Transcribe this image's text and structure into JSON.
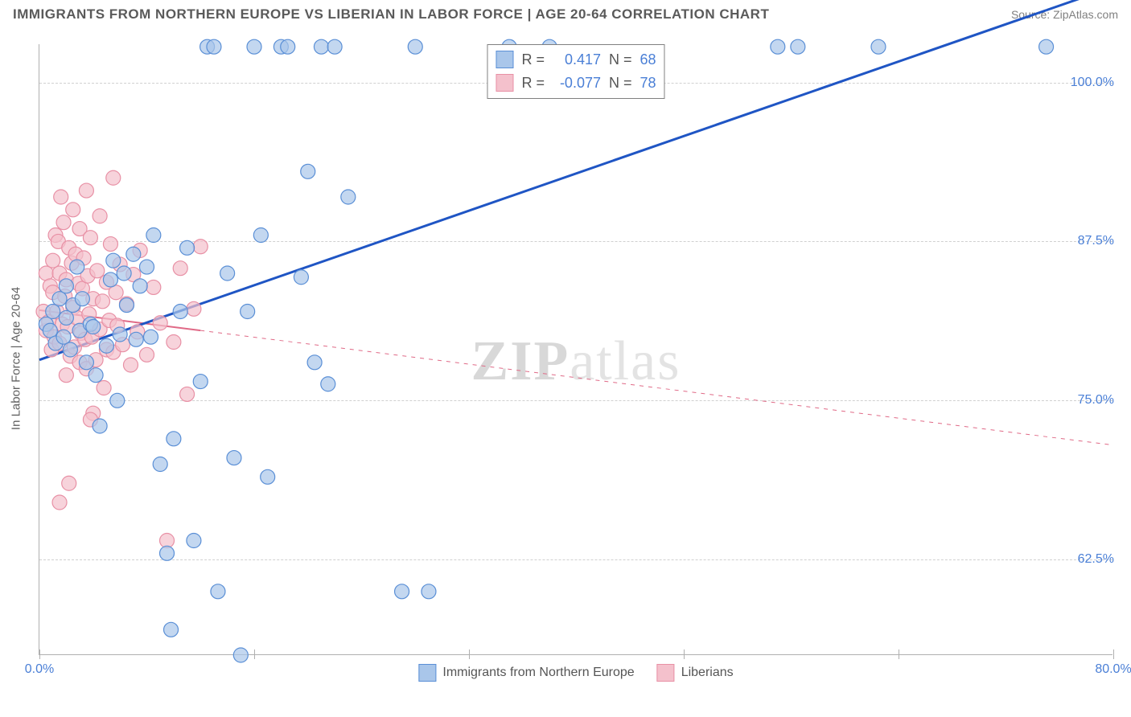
{
  "header": {
    "title": "IMMIGRANTS FROM NORTHERN EUROPE VS LIBERIAN IN LABOR FORCE | AGE 20-64 CORRELATION CHART",
    "source_prefix": "Source: ",
    "source_name": "ZipAtlas.com"
  },
  "chart": {
    "type": "scatter",
    "xlim": [
      0,
      80
    ],
    "ylim": [
      55,
      103
    ],
    "ylabel": "In Labor Force | Age 20-64",
    "x_ticks": [
      0,
      16,
      32,
      48,
      64,
      80
    ],
    "x_tick_labels": [
      "0.0%",
      "",
      "",
      "",
      "",
      "80.0%"
    ],
    "y_ticks": [
      62.5,
      75.0,
      87.5,
      100.0
    ],
    "y_tick_labels": [
      "62.5%",
      "75.0%",
      "87.5%",
      "100.0%"
    ],
    "grid_color": "#d0d0d0",
    "background_color": "#ffffff",
    "watermark_zip": "ZIP",
    "watermark_atlas": "atlas",
    "series": [
      {
        "key": "northern_europe",
        "label": "Immigrants from Northern Europe",
        "R": "0.417",
        "N": "68",
        "marker_fill": "#a9c6ea",
        "marker_stroke": "#5a8fd6",
        "marker_opacity": 0.7,
        "marker_radius": 9,
        "line_color": "#1f55c4",
        "line_width": 3,
        "line_dash": "none",
        "trend_start": [
          0,
          78.2
        ],
        "trend_end": [
          80,
          107.5
        ],
        "points": [
          [
            0.5,
            81
          ],
          [
            0.8,
            80.5
          ],
          [
            1,
            82
          ],
          [
            1.2,
            79.5
          ],
          [
            1.5,
            83
          ],
          [
            1.8,
            80
          ],
          [
            2,
            81.5
          ],
          [
            2,
            84
          ],
          [
            2.3,
            79
          ],
          [
            2.5,
            82.5
          ],
          [
            2.8,
            85.5
          ],
          [
            3,
            80.5
          ],
          [
            3.2,
            83
          ],
          [
            3.5,
            78
          ],
          [
            3.8,
            81
          ],
          [
            4,
            80.8
          ],
          [
            4.2,
            77
          ],
          [
            4.5,
            73
          ],
          [
            5,
            79.3
          ],
          [
            5.3,
            84.5
          ],
          [
            5.5,
            86
          ],
          [
            5.8,
            75
          ],
          [
            6,
            80.2
          ],
          [
            6.3,
            85
          ],
          [
            6.5,
            82.5
          ],
          [
            7,
            86.5
          ],
          [
            7.2,
            79.8
          ],
          [
            7.5,
            84
          ],
          [
            8,
            85.5
          ],
          [
            8.3,
            80
          ],
          [
            8.5,
            88
          ],
          [
            9,
            70
          ],
          [
            9.5,
            63
          ],
          [
            9.8,
            57
          ],
          [
            10,
            72
          ],
          [
            10.5,
            82
          ],
          [
            11,
            87
          ],
          [
            11.5,
            64
          ],
          [
            12,
            76.5
          ],
          [
            12.5,
            102.8
          ],
          [
            13,
            102.8
          ],
          [
            13.3,
            60
          ],
          [
            14,
            85
          ],
          [
            14.5,
            70.5
          ],
          [
            15,
            55
          ],
          [
            15.5,
            82
          ],
          [
            16,
            102.8
          ],
          [
            16.5,
            88
          ],
          [
            17,
            69
          ],
          [
            18,
            102.8
          ],
          [
            18.5,
            102.8
          ],
          [
            19.5,
            84.7
          ],
          [
            20,
            93
          ],
          [
            20.5,
            78
          ],
          [
            21,
            102.8
          ],
          [
            21.5,
            76.3
          ],
          [
            22,
            102.8
          ],
          [
            23,
            91
          ],
          [
            27,
            60
          ],
          [
            28,
            102.8
          ],
          [
            29,
            60
          ],
          [
            35,
            102.8
          ],
          [
            38,
            102.8
          ],
          [
            55,
            102.8
          ],
          [
            56.5,
            102.8
          ],
          [
            62.5,
            102.8
          ],
          [
            75,
            102.8
          ]
        ]
      },
      {
        "key": "liberians",
        "label": "Liberians",
        "R": "-0.077",
        "N": "78",
        "marker_fill": "#f4c1cc",
        "marker_stroke": "#e890a5",
        "marker_opacity": 0.7,
        "marker_radius": 9,
        "line_color": "#e06a87",
        "line_width": 2,
        "line_dash": "4,4",
        "trend_start": [
          0,
          82.1
        ],
        "trend_end": [
          80,
          71.5
        ],
        "points": [
          [
            0.3,
            82
          ],
          [
            0.5,
            80.5
          ],
          [
            0.5,
            85
          ],
          [
            0.7,
            81.2
          ],
          [
            0.8,
            84
          ],
          [
            0.9,
            79
          ],
          [
            1,
            86
          ],
          [
            1,
            83.5
          ],
          [
            1.1,
            80
          ],
          [
            1.2,
            88
          ],
          [
            1.3,
            82
          ],
          [
            1.4,
            87.5
          ],
          [
            1.5,
            79.5
          ],
          [
            1.5,
            85
          ],
          [
            1.6,
            91
          ],
          [
            1.7,
            81
          ],
          [
            1.8,
            89
          ],
          [
            1.9,
            83.2
          ],
          [
            2,
            77
          ],
          [
            2,
            84.5
          ],
          [
            2.1,
            80.8
          ],
          [
            2.2,
            87
          ],
          [
            2.3,
            78.5
          ],
          [
            2.4,
            85.8
          ],
          [
            2.5,
            82.3
          ],
          [
            2.5,
            90
          ],
          [
            2.6,
            79.2
          ],
          [
            2.7,
            86.5
          ],
          [
            2.8,
            81.5
          ],
          [
            2.9,
            84.2
          ],
          [
            3,
            78
          ],
          [
            3,
            88.5
          ],
          [
            3.1,
            80.3
          ],
          [
            3.2,
            83.8
          ],
          [
            3.3,
            86.2
          ],
          [
            3.4,
            79.8
          ],
          [
            3.5,
            91.5
          ],
          [
            3.5,
            77.5
          ],
          [
            3.6,
            84.8
          ],
          [
            3.7,
            81.8
          ],
          [
            3.8,
            87.8
          ],
          [
            3.9,
            80
          ],
          [
            4,
            74
          ],
          [
            4,
            83
          ],
          [
            4.2,
            78.2
          ],
          [
            4.3,
            85.2
          ],
          [
            4.5,
            80.6
          ],
          [
            4.5,
            89.5
          ],
          [
            4.7,
            82.8
          ],
          [
            4.8,
            76
          ],
          [
            5,
            79
          ],
          [
            5,
            84.3
          ],
          [
            5.2,
            81.3
          ],
          [
            5.3,
            87.3
          ],
          [
            5.5,
            78.8
          ],
          [
            5.7,
            83.5
          ],
          [
            5.8,
            80.9
          ],
          [
            6,
            85.7
          ],
          [
            6.2,
            79.4
          ],
          [
            6.5,
            82.6
          ],
          [
            6.8,
            77.8
          ],
          [
            7,
            84.9
          ],
          [
            7.3,
            80.4
          ],
          [
            7.5,
            86.8
          ],
          [
            8,
            78.6
          ],
          [
            8.5,
            83.9
          ],
          [
            9,
            81.1
          ],
          [
            9.5,
            64
          ],
          [
            10,
            79.6
          ],
          [
            10.5,
            85.4
          ],
          [
            11,
            75.5
          ],
          [
            11.5,
            82.2
          ],
          [
            12,
            87.1
          ],
          [
            5.5,
            92.5
          ],
          [
            1.5,
            67
          ],
          [
            3.8,
            73.5
          ],
          [
            2.2,
            68.5
          ]
        ]
      }
    ],
    "legend_labels": {
      "R_eq": "R =",
      "N_eq": "N ="
    }
  }
}
